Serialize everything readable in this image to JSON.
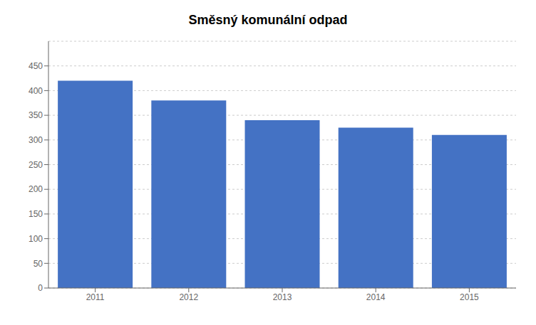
{
  "chart_data": {
    "type": "bar",
    "title": "Směsný komunální odpad",
    "categories": [
      "2011",
      "2012",
      "2013",
      "2014",
      "2015"
    ],
    "values": [
      420,
      380,
      340,
      325,
      310
    ],
    "color": "#4472C4",
    "ylim": [
      0,
      500
    ],
    "yticks": [
      0,
      50,
      100,
      150,
      200,
      250,
      300,
      350,
      400,
      450
    ],
    "grid": true
  }
}
